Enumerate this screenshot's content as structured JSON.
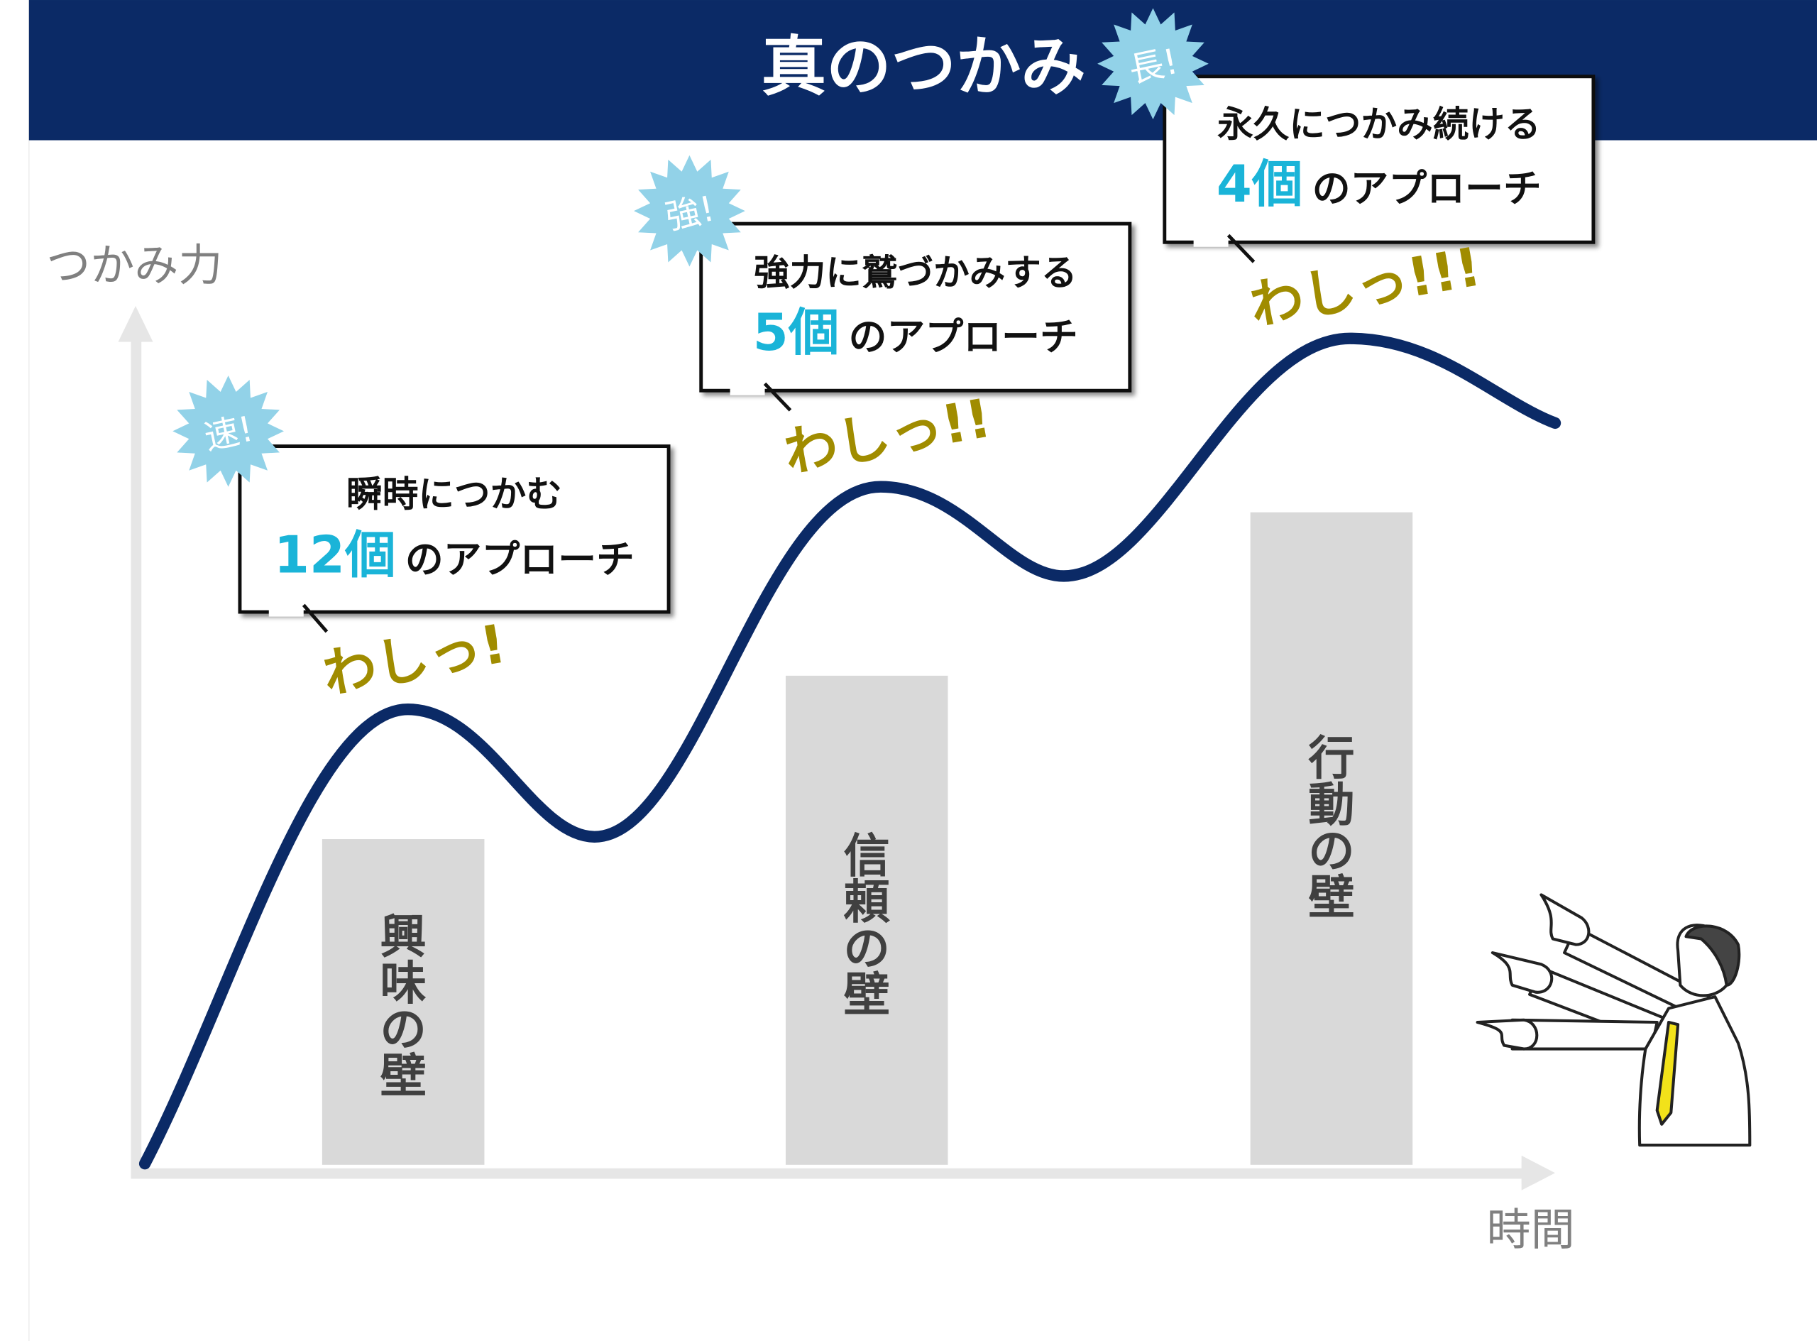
{
  "header": {
    "title": "真のつかみ"
  },
  "axes": {
    "y_label": "つかみ力",
    "x_label": "時間"
  },
  "walls": [
    {
      "label": "興味の壁",
      "chars": [
        "興",
        "味",
        "の",
        "壁"
      ]
    },
    {
      "label": "信頼の壁",
      "chars": [
        "信",
        "頼",
        "の",
        "壁"
      ]
    },
    {
      "label": "行動の壁",
      "chars": [
        "行",
        "動",
        "の",
        "壁"
      ]
    }
  ],
  "approaches": [
    {
      "badge": "速!",
      "heading": "瞬時につかむ",
      "count": "12個",
      "suffix": "のアプローチ",
      "exclaim": "わしっ!"
    },
    {
      "badge": "強!",
      "heading": "強力に鷲づかみする",
      "count": "5個",
      "suffix": "のアプローチ",
      "exclaim": "わしっ!!"
    },
    {
      "badge": "長!",
      "heading": "永久につかみ続ける",
      "count": "4個",
      "suffix": "のアプローチ",
      "exclaim": "わしっ!!!"
    }
  ],
  "colors": {
    "header": "#0B2A66",
    "curve": "#0B2A66",
    "accent": "#1AB4D8",
    "burst": "#92D2E8",
    "exclaim": "#A08C00",
    "wall": "#D9D9D9",
    "tie": "#F2E21A"
  }
}
